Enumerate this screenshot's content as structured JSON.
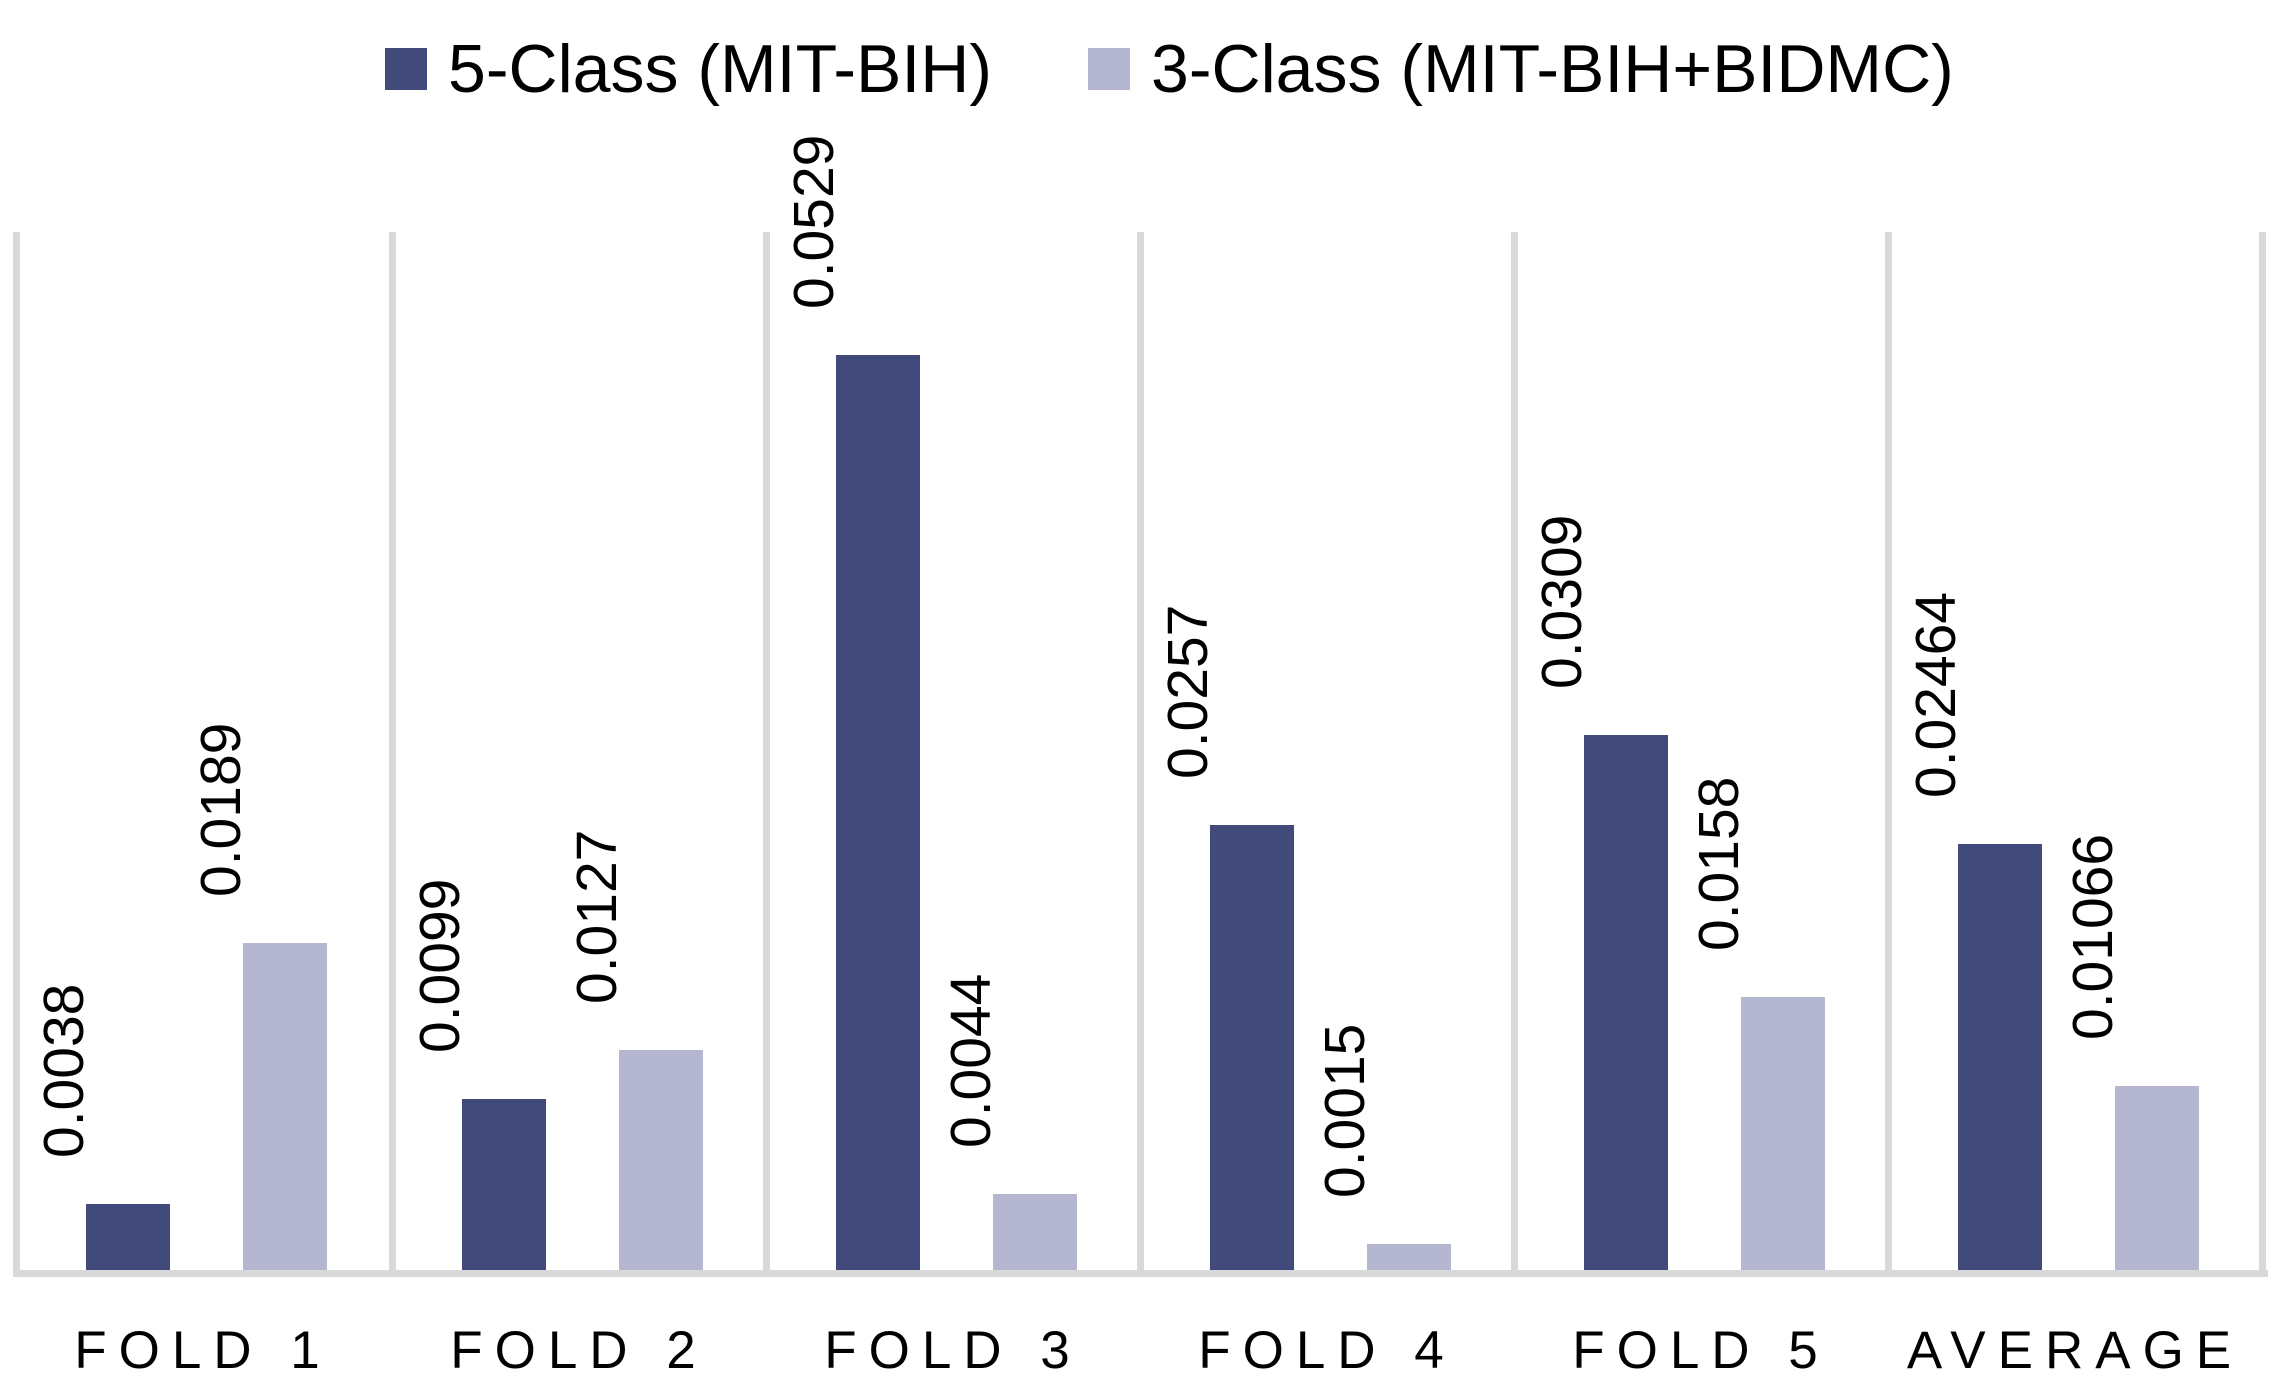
{
  "legend": {
    "items": [
      {
        "label": "5-Class (MIT-BIH)",
        "color": "#424A7C"
      },
      {
        "label": "3-Class (MIT-BIH+BIDMC)",
        "color": "#B5B6CF"
      }
    ]
  },
  "chart_data": {
    "type": "bar",
    "title": "",
    "xlabel": "",
    "ylabel": "",
    "categories": [
      "FOLD 1",
      "FOLD 2",
      "FOLD 3",
      "FOLD 4",
      "FOLD 5",
      "AVERAGE"
    ],
    "series": [
      {
        "name": "5-Class (MIT-BIH)",
        "color": "#424A7C",
        "values": [
          0.0038,
          0.0099,
          0.0529,
          0.0257,
          0.0309,
          0.02464
        ],
        "labels": [
          "0.0038",
          "0.0099",
          "0.0529",
          "0.0257",
          "0.0309",
          "0.02464"
        ]
      },
      {
        "name": "3-Class (MIT-BIH+BIDMC)",
        "color": "#B5B6CF",
        "values": [
          0.0189,
          0.0127,
          0.0044,
          0.0015,
          0.0158,
          0.01066
        ],
        "labels": [
          "0.0189",
          "0.0127",
          "0.0044",
          "0.0015",
          "0.0158",
          "0.01066"
        ]
      }
    ],
    "ylim": [
      0,
      0.06
    ],
    "grid": "vertical category separators only",
    "legend_position": "top",
    "data_label_rotation": 90,
    "axis_color": "#D9D9D9",
    "background_color": "#FFFFFF",
    "text_color": "#000000"
  }
}
